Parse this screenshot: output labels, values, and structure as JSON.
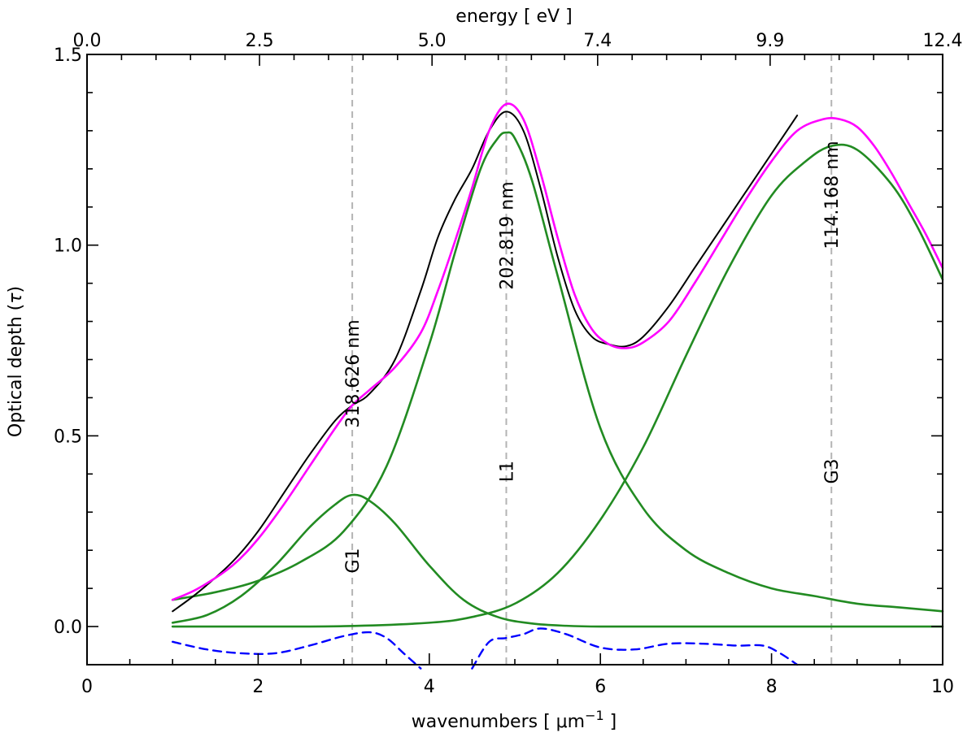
{
  "chart_data": {
    "type": "line",
    "xlabel": "wavenumbers [ μm",
    "xlabel_sup": "−1",
    "xlabel_end": " ]",
    "x2label": "energy [ eV ]",
    "ylabel": "Optical depth (",
    "ylabel_sym": "τ",
    "ylabel_end": ")",
    "xlim": [
      0,
      10
    ],
    "ylim": [
      -0.1,
      1.5
    ],
    "x_ticks": [
      0,
      2,
      4,
      6,
      8,
      10
    ],
    "x_tick_labels": [
      "0",
      "2",
      "4",
      "6",
      "8",
      "10"
    ],
    "y_ticks": [
      0.0,
      0.5,
      1.0,
      1.5
    ],
    "y_tick_labels": [
      "0.0",
      "0.5",
      "1.0",
      "1.5"
    ],
    "x2_ticks": [
      0,
      2.0161,
      4.0323,
      5.9677,
      7.9839,
      10
    ],
    "x2_tick_labels": [
      "0.0",
      "2.5",
      "5.0",
      "7.4",
      "9.9",
      "12.4"
    ],
    "grid": false,
    "vlines": [
      {
        "x": 3.1,
        "label": "318.626 nm",
        "tag": "G1"
      },
      {
        "x": 4.9,
        "label": "202.819 nm",
        "tag": "L1"
      },
      {
        "x": 8.7,
        "label": "114.168 nm",
        "tag": "G3"
      }
    ],
    "colors": {
      "observed": "#000000",
      "total_fit": "#ff00ff",
      "components": "#228b22",
      "residual": "#0000ff",
      "vlines": "#b4b4b4"
    },
    "series": [
      {
        "id": "observed",
        "x": [
          1.0,
          1.3,
          1.7,
          2.0,
          2.3,
          2.6,
          2.9,
          3.1,
          3.3,
          3.6,
          3.9,
          4.1,
          4.3,
          4.5,
          4.7,
          4.9,
          5.1,
          5.3,
          5.5,
          5.7,
          5.9,
          6.1,
          6.3,
          6.5,
          6.8,
          7.1,
          7.4,
          7.7,
          8.0,
          8.3
        ],
        "y": [
          0.04,
          0.09,
          0.17,
          0.25,
          0.35,
          0.45,
          0.54,
          0.58,
          0.61,
          0.7,
          0.88,
          1.02,
          1.12,
          1.2,
          1.3,
          1.35,
          1.3,
          1.15,
          0.97,
          0.83,
          0.76,
          0.74,
          0.735,
          0.76,
          0.84,
          0.94,
          1.04,
          1.14,
          1.24,
          1.34
        ]
      },
      {
        "id": "total_fit",
        "x": [
          1.0,
          1.3,
          1.7,
          2.0,
          2.3,
          2.6,
          2.9,
          3.1,
          3.3,
          3.6,
          3.9,
          4.1,
          4.3,
          4.5,
          4.7,
          4.9,
          5.1,
          5.3,
          5.5,
          5.7,
          5.9,
          6.1,
          6.3,
          6.5,
          6.8,
          7.1,
          7.4,
          7.7,
          8.0,
          8.3,
          8.6,
          8.8,
          9.0,
          9.2,
          9.4,
          9.6,
          9.8,
          10.0
        ],
        "y": [
          0.07,
          0.1,
          0.16,
          0.23,
          0.32,
          0.42,
          0.52,
          0.58,
          0.62,
          0.68,
          0.77,
          0.88,
          1.01,
          1.15,
          1.3,
          1.37,
          1.33,
          1.19,
          1.02,
          0.87,
          0.78,
          0.74,
          0.73,
          0.745,
          0.8,
          0.9,
          1.01,
          1.12,
          1.22,
          1.3,
          1.33,
          1.33,
          1.31,
          1.26,
          1.19,
          1.11,
          1.03,
          0.94
        ]
      },
      {
        "id": "component_g1",
        "x": [
          1.0,
          1.4,
          1.8,
          2.2,
          2.6,
          2.9,
          3.1,
          3.3,
          3.6,
          4.0,
          4.4,
          4.8,
          5.2,
          5.6,
          6.0,
          7.0,
          8.0,
          9.0,
          10.0
        ],
        "y": [
          0.01,
          0.03,
          0.08,
          0.16,
          0.26,
          0.32,
          0.345,
          0.33,
          0.27,
          0.16,
          0.07,
          0.025,
          0.008,
          0.002,
          0.0,
          0.0,
          0.0,
          0.0,
          0.0
        ]
      },
      {
        "id": "component_l1",
        "x": [
          1.0,
          1.5,
          2.0,
          2.5,
          3.0,
          3.5,
          4.0,
          4.3,
          4.6,
          4.8,
          4.9,
          5.0,
          5.2,
          5.5,
          6.0,
          6.5,
          7.0,
          7.5,
          8.0,
          8.5,
          9.0,
          9.5,
          10.0
        ],
        "y": [
          0.07,
          0.09,
          0.12,
          0.17,
          0.25,
          0.42,
          0.74,
          0.98,
          1.2,
          1.28,
          1.295,
          1.28,
          1.17,
          0.92,
          0.52,
          0.31,
          0.2,
          0.14,
          0.1,
          0.08,
          0.06,
          0.05,
          0.04
        ]
      },
      {
        "id": "component_g3",
        "x": [
          1.0,
          2.0,
          3.0,
          4.0,
          4.5,
          5.0,
          5.5,
          6.0,
          6.5,
          7.0,
          7.5,
          8.0,
          8.4,
          8.7,
          9.0,
          9.4,
          9.7,
          10.0
        ],
        "y": [
          0.0,
          0.0,
          0.001,
          0.01,
          0.025,
          0.06,
          0.14,
          0.28,
          0.47,
          0.71,
          0.94,
          1.13,
          1.22,
          1.26,
          1.25,
          1.16,
          1.05,
          0.91
        ]
      },
      {
        "id": "residual",
        "x": [
          1.0,
          1.4,
          1.8,
          2.2,
          2.6,
          3.0,
          3.3,
          3.5,
          3.7,
          3.9
        ],
        "y": [
          -0.04,
          -0.06,
          -0.07,
          -0.07,
          -0.05,
          -0.025,
          -0.015,
          -0.03,
          -0.07,
          -0.11
        ]
      },
      {
        "id": "residual_b",
        "x": [
          4.5,
          4.7,
          4.9,
          5.1,
          5.3,
          5.6,
          6.0,
          6.4,
          6.8,
          7.2,
          7.6,
          7.9,
          8.1,
          8.3
        ],
        "y": [
          -0.11,
          -0.04,
          -0.03,
          -0.02,
          -0.005,
          -0.02,
          -0.055,
          -0.06,
          -0.045,
          -0.045,
          -0.05,
          -0.05,
          -0.07,
          -0.1
        ]
      }
    ]
  }
}
